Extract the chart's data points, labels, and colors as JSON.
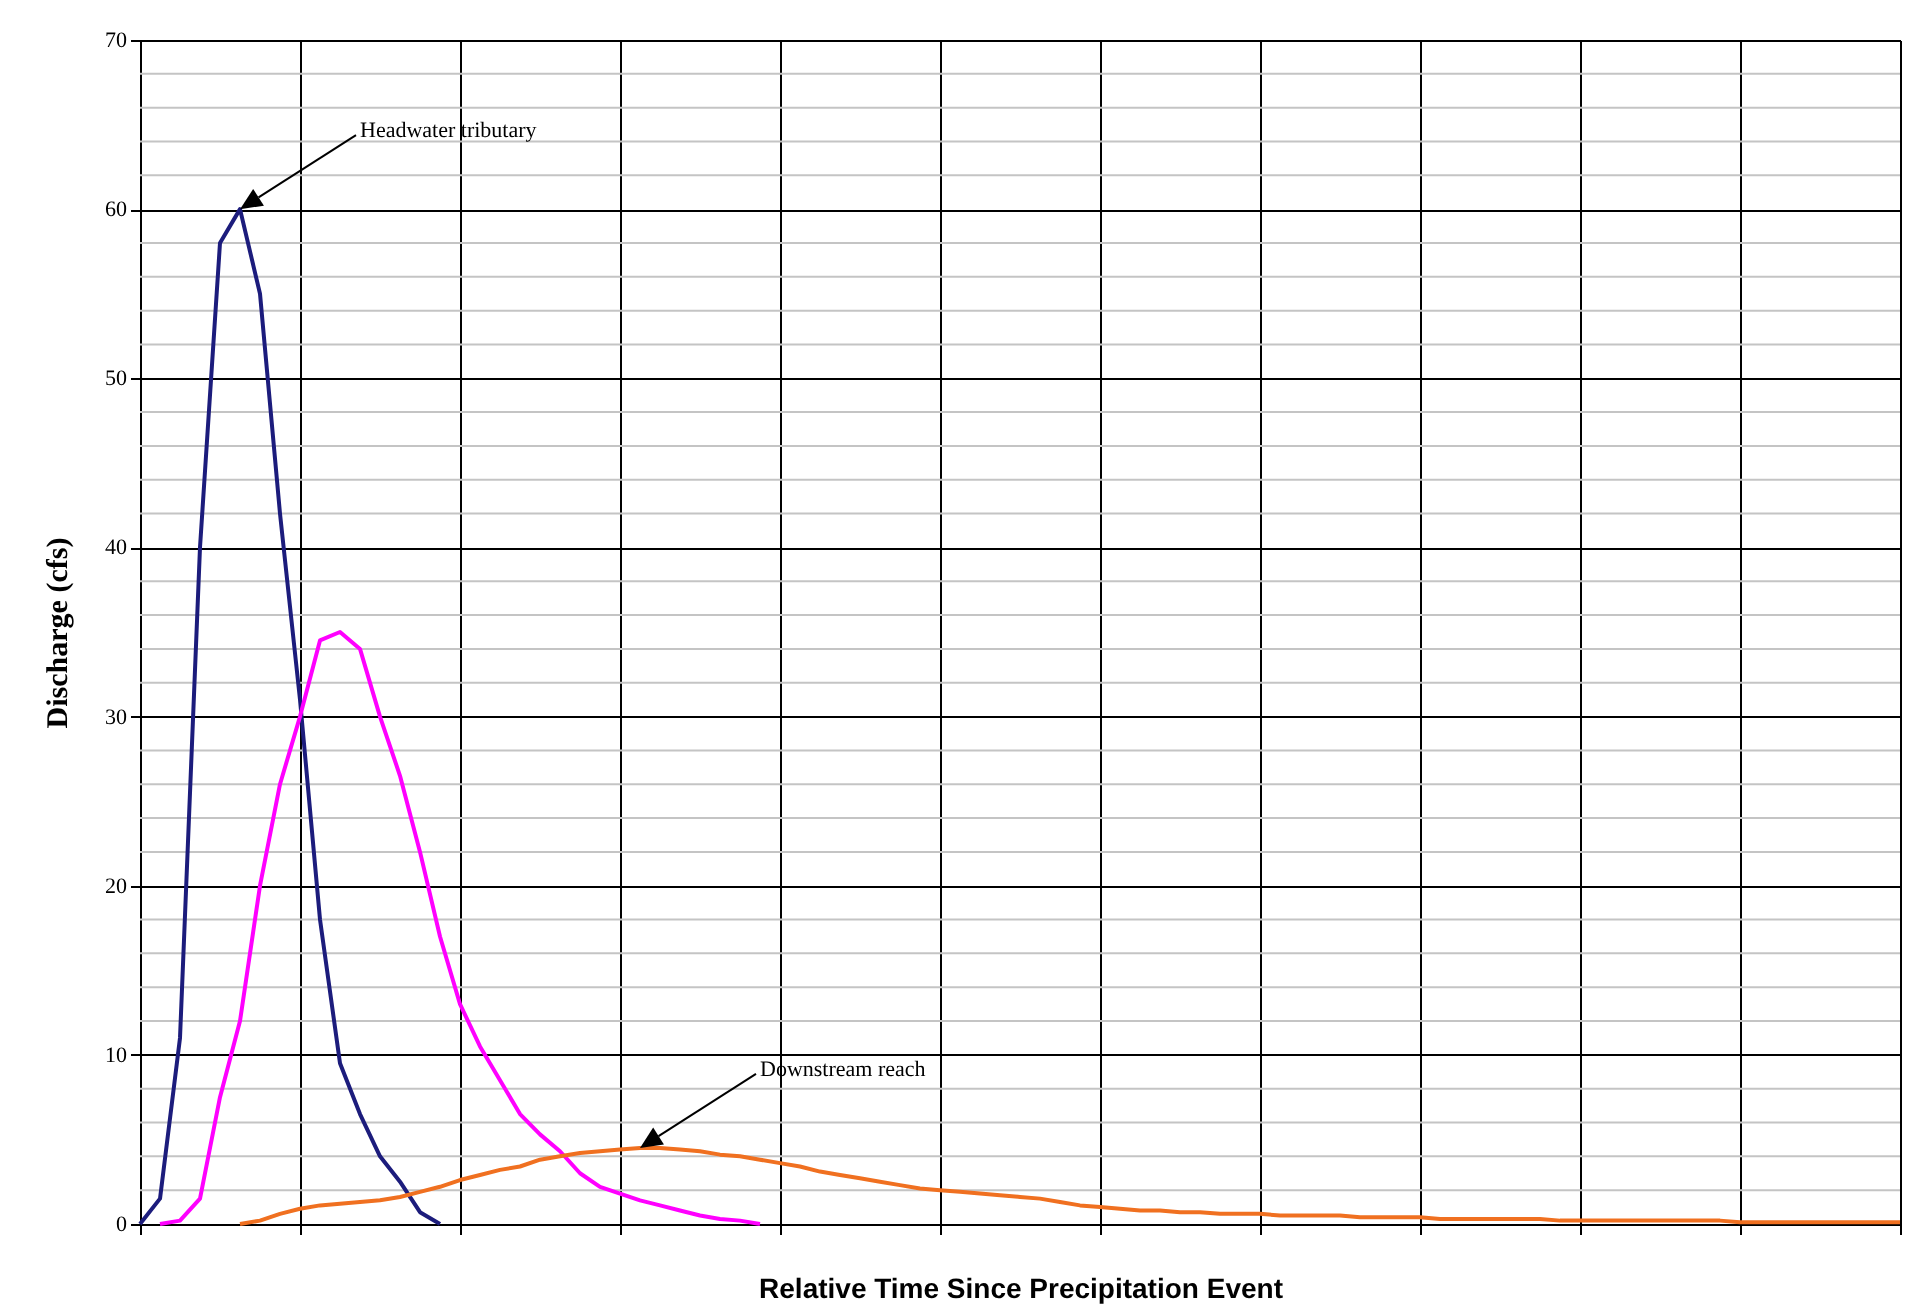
{
  "chart_data": {
    "type": "line",
    "xlabel": "Relative Time Since Precipitation Event",
    "ylabel": "Discharge (cfs)",
    "categories": [
      null,
      null,
      null,
      null,
      null,
      null,
      null,
      null,
      null,
      null,
      null,
      null,
      null,
      null,
      null,
      null,
      null,
      null,
      null,
      null,
      null,
      null,
      null,
      null,
      null,
      null,
      null,
      null,
      null,
      null,
      null,
      null,
      null,
      null,
      null,
      null,
      null,
      null,
      null,
      null,
      null,
      null,
      null,
      null,
      null,
      null,
      null,
      null,
      null,
      null,
      null,
      null,
      null,
      null,
      null,
      null,
      null,
      null,
      null,
      null,
      null,
      null,
      null,
      null,
      null,
      null,
      null,
      null,
      null,
      null,
      null,
      null,
      null,
      null,
      null,
      null,
      null,
      null,
      null,
      null,
      null,
      null,
      null,
      null,
      null,
      null,
      null,
      null,
      null
    ],
    "series": [
      {
        "name": "Headwater tributary",
        "color": "#1c1c7c",
        "values": [
          0,
          1.5,
          11,
          40,
          58,
          60,
          55,
          42,
          31,
          18,
          9.5,
          6.5,
          4,
          2.5,
          0.7,
          0,
          null,
          null,
          null,
          null,
          null,
          null,
          null,
          null,
          null,
          null,
          null,
          null,
          null,
          null,
          null,
          null,
          null,
          null,
          null,
          null,
          null,
          null,
          null,
          null,
          null,
          null,
          null,
          null,
          null,
          null,
          null,
          null,
          null,
          null,
          null,
          null,
          null,
          null,
          null,
          null,
          null,
          null,
          null,
          null,
          null,
          null,
          null,
          null,
          null,
          null,
          null,
          null,
          null,
          null,
          null,
          null,
          null,
          null,
          null,
          null,
          null,
          null,
          null,
          null,
          null,
          null,
          null,
          null,
          null,
          null,
          null,
          null,
          null
        ]
      },
      {
        "color": "#ff00ff",
        "values": [
          null,
          0,
          0.2,
          1.5,
          7.5,
          12,
          20,
          26,
          30,
          34.5,
          35,
          34,
          30,
          26.5,
          22,
          17,
          13,
          10.5,
          8.5,
          6.5,
          5.3,
          4.3,
          3,
          2.2,
          1.8,
          1.4,
          1.1,
          0.8,
          0.5,
          0.3,
          0.2,
          0,
          null,
          null,
          null,
          null,
          null,
          null,
          null,
          null,
          null,
          null,
          null,
          null,
          null,
          null,
          null,
          null,
          null,
          null,
          null,
          null,
          null,
          null,
          null,
          null,
          null,
          null,
          null,
          null,
          null,
          null,
          null,
          null,
          null,
          null,
          null,
          null,
          null,
          null,
          null,
          null,
          null,
          null,
          null,
          null,
          null,
          null,
          null,
          null,
          null,
          null,
          null,
          null,
          null,
          null,
          null,
          null,
          null
        ]
      },
      {
        "name": "Downstream reach",
        "color": "#f07020",
        "values": [
          null,
          null,
          null,
          null,
          null,
          0,
          0.2,
          0.6,
          0.9,
          1.1,
          1.2,
          1.3,
          1.4,
          1.6,
          1.9,
          2.2,
          2.6,
          2.9,
          3.2,
          3.4,
          3.8,
          4,
          4.2,
          4.3,
          4.4,
          4.5,
          4.5,
          4.4,
          4.3,
          4.1,
          4,
          3.8,
          3.6,
          3.4,
          3.1,
          2.9,
          2.7,
          2.5,
          2.3,
          2.1,
          2,
          1.9,
          1.8,
          1.7,
          1.6,
          1.5,
          1.3,
          1.1,
          1,
          0.9,
          0.8,
          0.8,
          0.7,
          0.7,
          0.6,
          0.6,
          0.6,
          0.5,
          0.5,
          0.5,
          0.5,
          0.4,
          0.4,
          0.4,
          0.4,
          0.3,
          0.3,
          0.3,
          0.3,
          0.3,
          0.3,
          0.2,
          0.2,
          0.2,
          0.2,
          0.2,
          0.2,
          0.2,
          0.2,
          0.2,
          0.1,
          0.1,
          0.1,
          0.1,
          0.1,
          0.1,
          0.1,
          0.1,
          0.1
        ]
      }
    ],
    "ylim": [
      0,
      70
    ],
    "yticks": [
      0,
      10,
      20,
      30,
      40,
      50,
      60,
      70
    ],
    "grid": true,
    "legend": false,
    "marker": "none",
    "line_style": "solid"
  }
}
